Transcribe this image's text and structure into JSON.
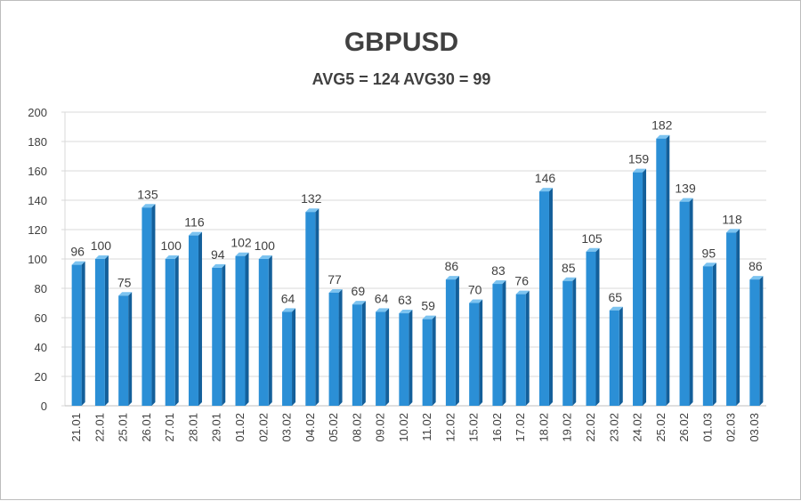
{
  "chart_data": {
    "type": "bar",
    "title": "GBPUSD",
    "subtitle": "AVG5 = 124 AVG30 = 99",
    "categories": [
      "21.01",
      "22.01",
      "25.01",
      "26.01",
      "27.01",
      "28.01",
      "29.01",
      "01.02",
      "02.02",
      "03.02",
      "04.02",
      "05.02",
      "08.02",
      "09.02",
      "10.02",
      "11.02",
      "12.02",
      "15.02",
      "16.02",
      "17.02",
      "18.02",
      "19.02",
      "22.02",
      "23.02",
      "24.02",
      "25.02",
      "26.02",
      "01.03",
      "02.03",
      "03.03"
    ],
    "values": [
      96,
      100,
      75,
      135,
      100,
      116,
      94,
      102,
      100,
      64,
      132,
      77,
      69,
      64,
      63,
      59,
      86,
      70,
      83,
      76,
      146,
      85,
      105,
      65,
      159,
      182,
      139,
      95,
      118,
      86
    ],
    "ylim": [
      0,
      200
    ],
    "yticks": [
      0,
      20,
      40,
      60,
      80,
      100,
      120,
      140,
      160,
      180,
      200
    ],
    "grid": true,
    "legend": "none",
    "colors": {
      "bar_front": "#2b8fd6",
      "bar_side": "#135f9a",
      "bar_top": "#7cc3f0",
      "grid": "#d9d9d9",
      "text": "#404040"
    }
  }
}
